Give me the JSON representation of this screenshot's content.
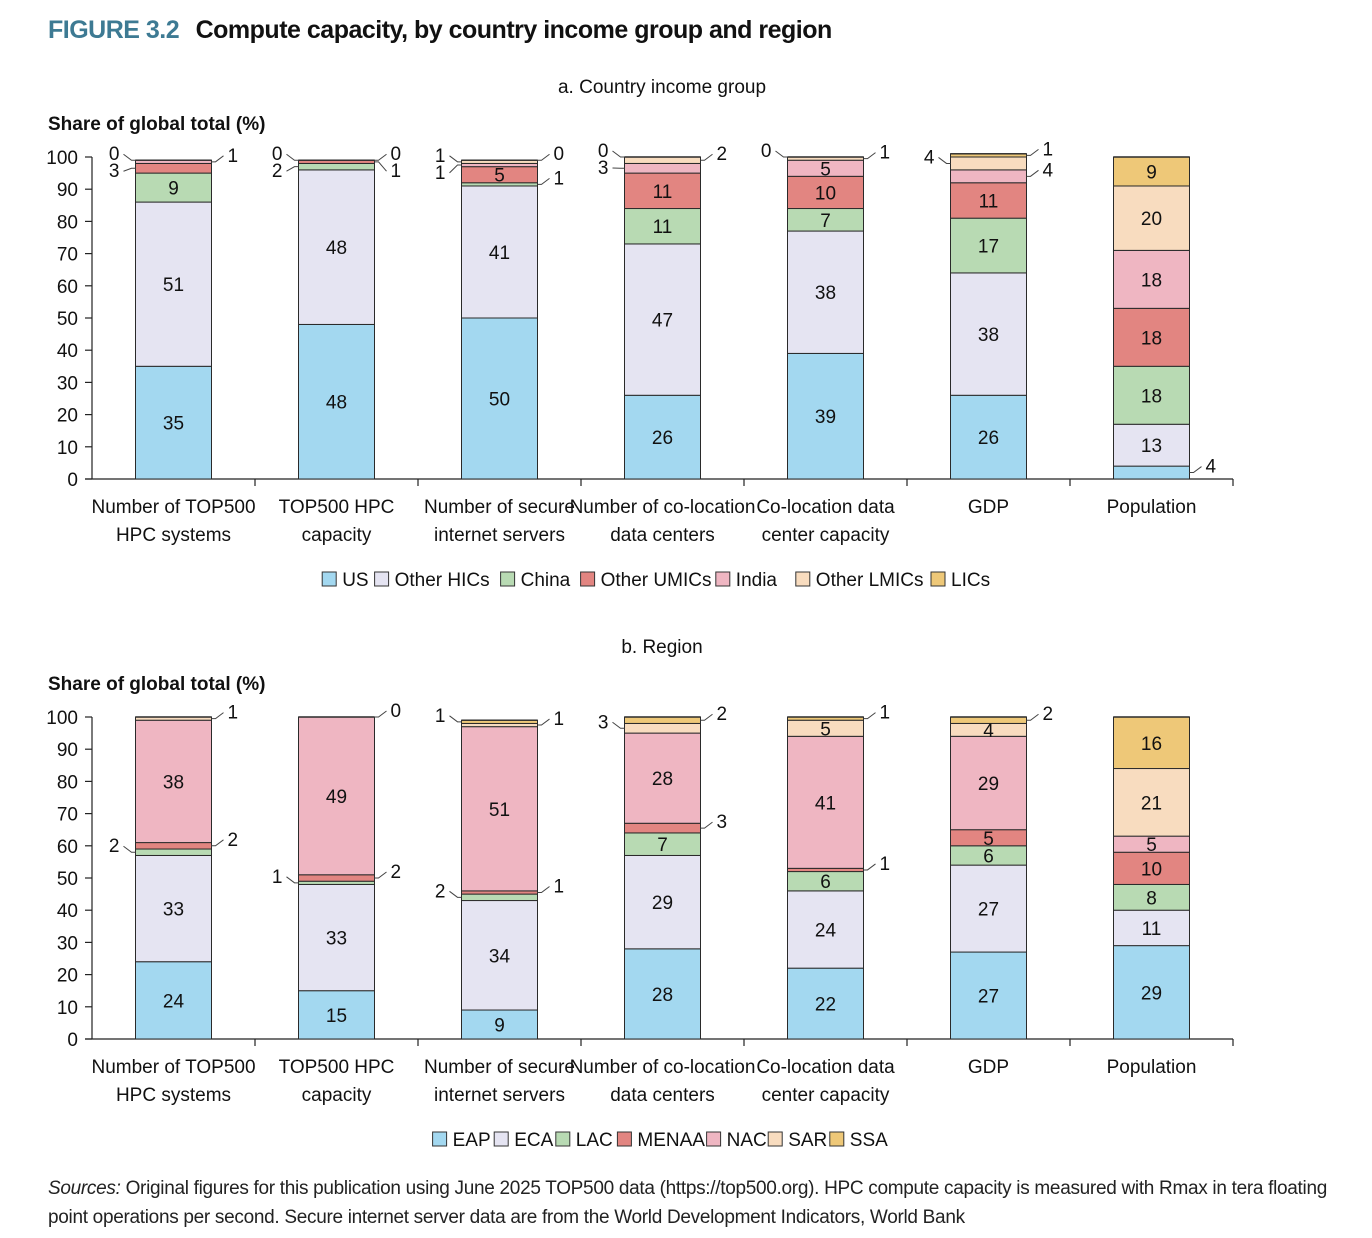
{
  "figure": {
    "number": "FIGURE 3.2",
    "title": "Compute capacity, by country income group and region"
  },
  "sources": {
    "label": "Sources:",
    "text": " Original figures for this publication using June 2025 TOP500 data (https://top500.org). HPC compute capacity is measured with Rmax in tera floating point operations per second. Secure internet server data are from the World Development Indicators, World Bank"
  },
  "colors": {
    "c1": "#a3d8f0",
    "c2": "#e5e4f2",
    "c3": "#b8dab3",
    "c4": "#e28581",
    "c5": "#efb6c2",
    "c6": "#f8dcbf",
    "c7": "#eec878",
    "title_accent": "#3d7a93"
  },
  "chart_data": [
    {
      "type": "bar",
      "stacked": true,
      "title": "a. Country income group",
      "ylabel": "Share of global total (%)",
      "xlabel": "",
      "ylim": [
        0,
        100
      ],
      "yticks": [
        0,
        10,
        20,
        30,
        40,
        50,
        60,
        70,
        80,
        90,
        100
      ],
      "grid": false,
      "legend_position": "bottom",
      "categories": [
        [
          "Number of TOP500",
          "HPC systems"
        ],
        [
          "TOP500 HPC",
          "capacity"
        ],
        [
          "Number of secure",
          "internet servers"
        ],
        [
          "Number of co-location",
          "data centers"
        ],
        [
          "Co-location data",
          "center capacity"
        ],
        [
          "GDP"
        ],
        [
          "Population"
        ]
      ],
      "series": [
        {
          "name": "US",
          "values": [
            35,
            48,
            50,
            26,
            39,
            26,
            4
          ]
        },
        {
          "name": "Other HICs",
          "values": [
            51,
            48,
            41,
            47,
            38,
            38,
            13
          ]
        },
        {
          "name": "China",
          "values": [
            9,
            2,
            1,
            11,
            7,
            17,
            18
          ]
        },
        {
          "name": "Other UMICs",
          "values": [
            3,
            1,
            5,
            11,
            10,
            11,
            18
          ]
        },
        {
          "name": "India",
          "values": [
            1,
            0,
            1,
            3,
            5,
            4,
            18
          ]
        },
        {
          "name": "Other LMICs",
          "values": [
            0,
            0,
            1,
            2,
            1,
            4,
            20
          ]
        },
        {
          "name": "LICs",
          "values": [
            0,
            0,
            0,
            0,
            0,
            1,
            9
          ]
        }
      ],
      "callouts": [
        [
          {
            "series": 6,
            "text": "0",
            "side": "left"
          },
          {
            "series": 4,
            "text": "1",
            "side": "right"
          },
          {
            "series": 3,
            "text": "3",
            "side": "left"
          }
        ],
        [
          {
            "series": 6,
            "text": "0",
            "side": "left"
          },
          {
            "series": 5,
            "text": "0",
            "side": "right"
          },
          {
            "series": 3,
            "text": "1",
            "side": "right"
          },
          {
            "series": 2,
            "text": "2",
            "side": "left"
          }
        ],
        [
          {
            "series": 5,
            "text": "1",
            "side": "left"
          },
          {
            "series": 6,
            "text": "0",
            "side": "right"
          },
          {
            "series": 4,
            "text": "1",
            "side": "left"
          },
          {
            "series": 2,
            "text": "1",
            "side": "right"
          }
        ],
        [
          {
            "series": 6,
            "text": "0",
            "side": "left"
          },
          {
            "series": 5,
            "text": "2",
            "side": "right"
          },
          {
            "series": 4,
            "text": "3",
            "side": "left"
          }
        ],
        [
          {
            "series": 6,
            "text": "0",
            "side": "left"
          },
          {
            "series": 5,
            "text": "1",
            "side": "right"
          }
        ],
        [
          {
            "series": 5,
            "text": "4",
            "side": "left"
          },
          {
            "series": 6,
            "text": "1",
            "side": "right"
          },
          {
            "series": 4,
            "text": "4",
            "side": "right"
          }
        ],
        [
          {
            "series": 0,
            "text": "4",
            "side": "right"
          }
        ]
      ],
      "inline_labels": [
        [
          [
            0,
            "35"
          ],
          [
            1,
            "51"
          ],
          [
            2,
            "9"
          ]
        ],
        [
          [
            0,
            "48"
          ],
          [
            1,
            "48"
          ]
        ],
        [
          [
            0,
            "50"
          ],
          [
            1,
            "41"
          ],
          [
            3,
            "5"
          ]
        ],
        [
          [
            0,
            "26"
          ],
          [
            1,
            "47"
          ],
          [
            2,
            "11"
          ],
          [
            3,
            "11"
          ]
        ],
        [
          [
            0,
            "39"
          ],
          [
            1,
            "38"
          ],
          [
            2,
            "7"
          ],
          [
            3,
            "10"
          ],
          [
            4,
            "5"
          ]
        ],
        [
          [
            0,
            "26"
          ],
          [
            1,
            "38"
          ],
          [
            2,
            "17"
          ],
          [
            3,
            "11"
          ]
        ],
        [
          [
            1,
            "13"
          ],
          [
            2,
            "18"
          ],
          [
            3,
            "18"
          ],
          [
            4,
            "18"
          ],
          [
            5,
            "20"
          ],
          [
            6,
            "9"
          ]
        ]
      ]
    },
    {
      "type": "bar",
      "stacked": true,
      "title": "b. Region",
      "ylabel": "Share of global total (%)",
      "xlabel": "",
      "ylim": [
        0,
        100
      ],
      "yticks": [
        0,
        10,
        20,
        30,
        40,
        50,
        60,
        70,
        80,
        90,
        100
      ],
      "grid": false,
      "legend_position": "bottom",
      "categories": [
        [
          "Number of TOP500",
          "HPC systems"
        ],
        [
          "TOP500 HPC",
          "capacity"
        ],
        [
          "Number of secure",
          "internet servers"
        ],
        [
          "Number of co-location",
          "data centers"
        ],
        [
          "Co-location data",
          "center capacity"
        ],
        [
          "GDP"
        ],
        [
          "Population"
        ]
      ],
      "series": [
        {
          "name": "EAP",
          "values": [
            24,
            15,
            9,
            28,
            22,
            27,
            29
          ]
        },
        {
          "name": "ECA",
          "values": [
            33,
            33,
            34,
            29,
            24,
            27,
            11
          ]
        },
        {
          "name": "LAC",
          "values": [
            2,
            1,
            2,
            7,
            6,
            6,
            8
          ]
        },
        {
          "name": "MENAAP",
          "values": [
            2,
            2,
            1,
            3,
            1,
            5,
            10
          ]
        },
        {
          "name": "NAC",
          "values": [
            38,
            49,
            51,
            28,
            41,
            29,
            5
          ]
        },
        {
          "name": "SAR",
          "values": [
            1,
            0,
            1,
            3,
            5,
            4,
            21
          ]
        },
        {
          "name": "SSA",
          "values": [
            0,
            0,
            1,
            2,
            1,
            2,
            16
          ]
        }
      ],
      "callouts": [
        [
          {
            "series": 5,
            "text": "1",
            "side": "right"
          },
          {
            "series": 3,
            "text": "2",
            "side": "right"
          },
          {
            "series": 2,
            "text": "2",
            "side": "left"
          }
        ],
        [
          {
            "series": 5,
            "text": "0",
            "side": "right"
          },
          {
            "series": 3,
            "text": "2",
            "side": "right"
          },
          {
            "series": 2,
            "text": "1",
            "side": "left"
          }
        ],
        [
          {
            "series": 6,
            "text": "1",
            "side": "left"
          },
          {
            "series": 5,
            "text": "1",
            "side": "right"
          },
          {
            "series": 3,
            "text": "1",
            "side": "right"
          },
          {
            "series": 2,
            "text": "2",
            "side": "left"
          }
        ],
        [
          {
            "series": 6,
            "text": "2",
            "side": "right"
          },
          {
            "series": 5,
            "text": "3",
            "side": "left"
          },
          {
            "series": 3,
            "text": "3",
            "side": "right"
          }
        ],
        [
          {
            "series": 6,
            "text": "1",
            "side": "right"
          },
          {
            "series": 3,
            "text": "1",
            "side": "right"
          }
        ],
        [
          {
            "series": 6,
            "text": "2",
            "side": "right"
          }
        ],
        []
      ],
      "inline_labels": [
        [
          [
            0,
            "24"
          ],
          [
            1,
            "33"
          ],
          [
            4,
            "38"
          ]
        ],
        [
          [
            0,
            "15"
          ],
          [
            1,
            "33"
          ],
          [
            4,
            "49"
          ]
        ],
        [
          [
            0,
            "9"
          ],
          [
            1,
            "34"
          ],
          [
            4,
            "51"
          ]
        ],
        [
          [
            0,
            "28"
          ],
          [
            1,
            "29"
          ],
          [
            2,
            "7"
          ],
          [
            4,
            "28"
          ]
        ],
        [
          [
            0,
            "22"
          ],
          [
            1,
            "24"
          ],
          [
            2,
            "6"
          ],
          [
            4,
            "41"
          ],
          [
            5,
            "5"
          ]
        ],
        [
          [
            0,
            "27"
          ],
          [
            1,
            "27"
          ],
          [
            2,
            "6"
          ],
          [
            3,
            "5"
          ],
          [
            4,
            "29"
          ],
          [
            5,
            "4"
          ]
        ],
        [
          [
            0,
            "29"
          ],
          [
            1,
            "11"
          ],
          [
            2,
            "8"
          ],
          [
            3,
            "10"
          ],
          [
            4,
            "5"
          ],
          [
            5,
            "21"
          ],
          [
            6,
            "16"
          ]
        ]
      ]
    }
  ]
}
